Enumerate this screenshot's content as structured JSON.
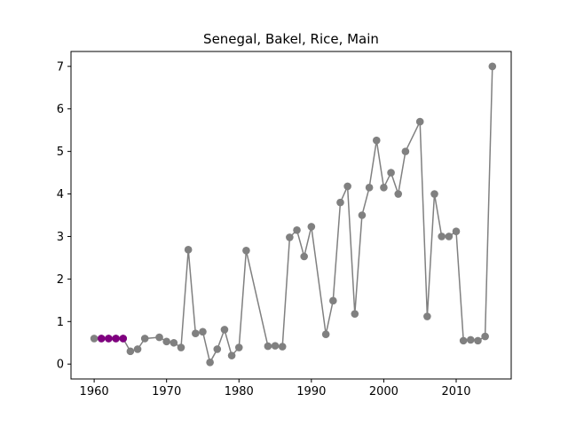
{
  "chart_data": {
    "type": "line",
    "title": "Senegal, Bakel, Rice, Main",
    "xlabel": "",
    "ylabel": "",
    "xlim": [
      1956.8,
      2017.6
    ],
    "ylim": [
      -0.35,
      7.35
    ],
    "xticks": [
      1960,
      1970,
      1980,
      1990,
      2000,
      2010
    ],
    "yticks": [
      0,
      1,
      2,
      3,
      4,
      5,
      6,
      7
    ],
    "grid": false,
    "line_color": "#808080",
    "marker_color": "#808080",
    "highlight_color": "#800080",
    "series": [
      {
        "x": [
          1960,
          1961,
          1962,
          1963,
          1964,
          1965,
          1966,
          1967,
          1969,
          1970,
          1971,
          1972,
          1973,
          1974,
          1975,
          1976,
          1977,
          1978,
          1979,
          1980,
          1981,
          1984,
          1985,
          1986,
          1987,
          1988,
          1989,
          1990,
          1992,
          1993,
          1994,
          1995,
          1996,
          1997,
          1998,
          1999,
          2000,
          2001,
          2002,
          2003,
          2005,
          2006,
          2007,
          2008,
          2009,
          2010,
          2011,
          2012,
          2013,
          2014,
          2015
        ],
        "y": [
          0.6,
          0.6,
          0.6,
          0.6,
          0.6,
          0.3,
          0.35,
          0.6,
          0.63,
          0.53,
          0.5,
          0.39,
          2.69,
          0.72,
          0.76,
          0.04,
          0.35,
          0.81,
          0.2,
          0.39,
          2.67,
          0.42,
          0.43,
          0.41,
          2.98,
          3.15,
          2.53,
          3.23,
          0.7,
          1.49,
          3.8,
          4.18,
          1.18,
          3.5,
          4.15,
          5.26,
          4.15,
          4.5,
          4.0,
          5.0,
          5.7,
          1.12,
          4.0,
          3.0,
          3.0,
          3.12,
          0.55,
          0.57,
          0.55,
          0.65,
          7.0
        ]
      }
    ],
    "highlight_points": {
      "x": [
        1961,
        1962,
        1963,
        1964
      ],
      "y": [
        0.6,
        0.6,
        0.6,
        0.6
      ]
    }
  }
}
